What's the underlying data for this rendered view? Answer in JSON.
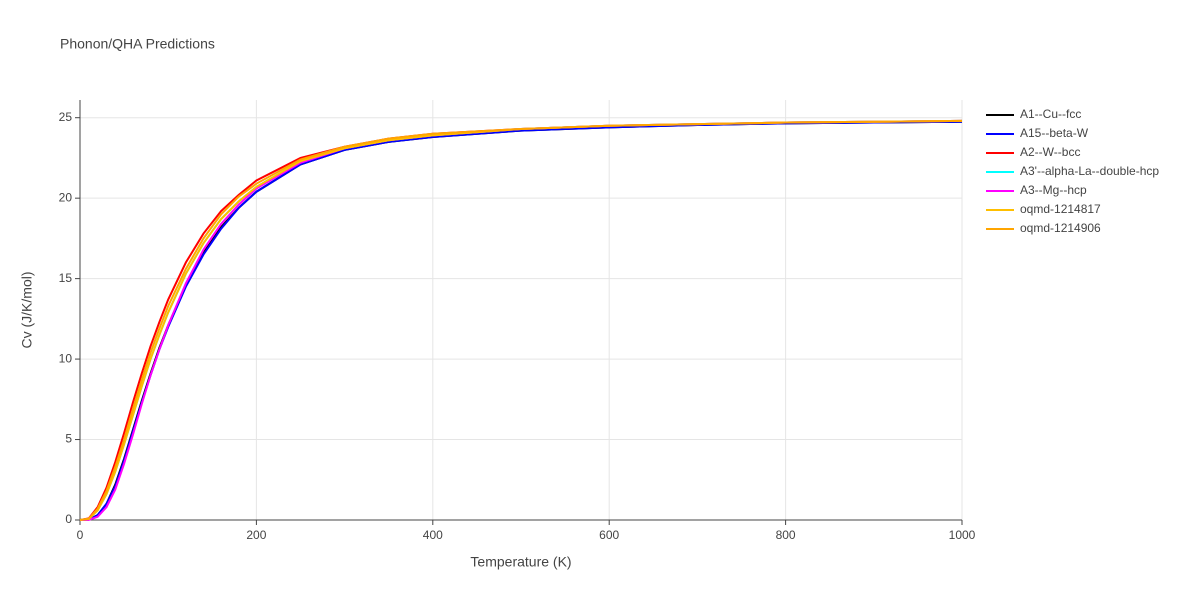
{
  "chart_data": {
    "type": "line",
    "title": "Phonon/QHA Predictions",
    "x_label": "Temperature (K)",
    "y_label": "Cv (J/K/mol)",
    "x": [
      0,
      10,
      20,
      30,
      40,
      50,
      60,
      70,
      80,
      90,
      100,
      120,
      140,
      160,
      180,
      200,
      250,
      300,
      350,
      400,
      500,
      600,
      700,
      800,
      900,
      1000
    ],
    "series": [
      {
        "name": "A1--Cu--fcc",
        "color": "#000000",
        "values": [
          0,
          0.02,
          0.3,
          1.0,
          2.2,
          3.8,
          5.6,
          7.4,
          9.1,
          10.7,
          12.1,
          14.6,
          16.6,
          18.2,
          19.4,
          20.4,
          22.1,
          23.0,
          23.5,
          23.8,
          24.2,
          24.4,
          24.55,
          24.65,
          24.7,
          24.75
        ]
      },
      {
        "name": "A15--beta-W",
        "color": "#0000ff",
        "values": [
          0,
          0.02,
          0.3,
          1.0,
          2.1,
          3.7,
          5.5,
          7.3,
          9.0,
          10.6,
          12.0,
          14.5,
          16.5,
          18.1,
          19.4,
          20.4,
          22.1,
          23.0,
          23.5,
          23.8,
          24.2,
          24.4,
          24.55,
          24.65,
          24.7,
          24.75
        ]
      },
      {
        "name": "A2--W--bcc",
        "color": "#ff0000",
        "values": [
          0,
          0.1,
          0.8,
          2.0,
          3.6,
          5.4,
          7.3,
          9.1,
          10.8,
          12.3,
          13.7,
          16.0,
          17.8,
          19.2,
          20.2,
          21.1,
          22.5,
          23.2,
          23.7,
          24.0,
          24.3,
          24.5,
          24.6,
          24.7,
          24.75,
          24.8
        ]
      },
      {
        "name": "A3'--alpha-La--double-hcp",
        "color": "#00ffff",
        "values": [
          0,
          0.06,
          0.6,
          1.6,
          3.0,
          4.7,
          6.5,
          8.3,
          10.0,
          11.5,
          12.9,
          15.3,
          17.2,
          18.7,
          19.8,
          20.7,
          22.3,
          23.1,
          23.6,
          23.9,
          24.3,
          24.5,
          24.6,
          24.7,
          24.75,
          24.8
        ]
      },
      {
        "name": "A3--Mg--hcp",
        "color": "#ff00ff",
        "values": [
          0,
          0.01,
          0.2,
          0.8,
          1.9,
          3.5,
          5.3,
          7.2,
          9.0,
          10.6,
          12.1,
          14.7,
          16.8,
          18.4,
          19.6,
          20.6,
          22.2,
          23.1,
          23.6,
          23.9,
          24.3,
          24.5,
          24.6,
          24.7,
          24.75,
          24.8
        ]
      },
      {
        "name": "oqmd-1214817",
        "color": "#ffbf00",
        "values": [
          0,
          0.06,
          0.6,
          1.6,
          3.0,
          4.7,
          6.5,
          8.3,
          10.0,
          11.5,
          12.9,
          15.3,
          17.2,
          18.7,
          19.8,
          20.7,
          22.3,
          23.1,
          23.6,
          23.9,
          24.3,
          24.5,
          24.6,
          24.7,
          24.75,
          24.8
        ]
      },
      {
        "name": "oqmd-1214906",
        "color": "#ffa500",
        "values": [
          0,
          0.08,
          0.7,
          1.8,
          3.3,
          5.0,
          6.9,
          8.7,
          10.4,
          11.9,
          13.3,
          15.6,
          17.5,
          19.0,
          20.1,
          20.9,
          22.4,
          23.2,
          23.7,
          24.0,
          24.3,
          24.5,
          24.6,
          24.7,
          24.75,
          24.8
        ]
      }
    ],
    "xlim": [
      0,
      1000
    ],
    "ylim": [
      0,
      26.1
    ],
    "xticks": [
      0,
      200,
      400,
      600,
      800,
      1000
    ],
    "yticks": [
      0,
      5,
      10,
      15,
      20,
      25
    ],
    "grid": true,
    "legend": "right"
  }
}
